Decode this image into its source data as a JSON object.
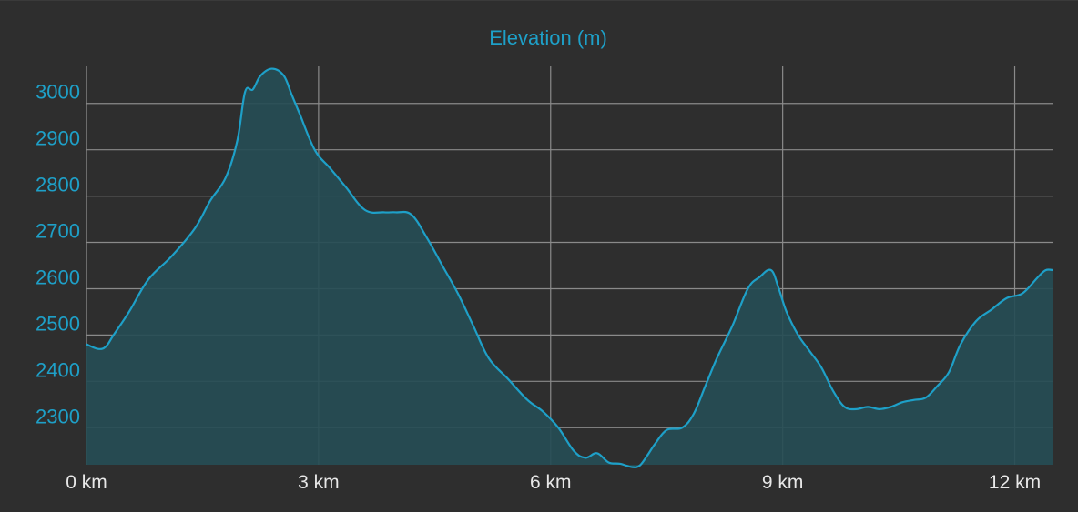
{
  "chart_data": {
    "type": "area",
    "title": "Elevation (m)",
    "xlabel": "",
    "ylabel": "",
    "x_unit": "km",
    "xlim": [
      0,
      12.5
    ],
    "ylim": [
      2220,
      3080
    ],
    "x_ticks": [
      {
        "value": 0,
        "label": "0 km"
      },
      {
        "value": 3,
        "label": "3 km"
      },
      {
        "value": 6,
        "label": "6 km"
      },
      {
        "value": 9,
        "label": "9 km"
      },
      {
        "value": 12,
        "label": "12 km"
      }
    ],
    "y_ticks": [
      {
        "value": 2300,
        "label": "2300"
      },
      {
        "value": 2400,
        "label": "2400"
      },
      {
        "value": 2500,
        "label": "2500"
      },
      {
        "value": 2600,
        "label": "2600"
      },
      {
        "value": 2700,
        "label": "2700"
      },
      {
        "value": 2800,
        "label": "2800"
      },
      {
        "value": 2900,
        "label": "2900"
      },
      {
        "value": 3000,
        "label": "3000"
      }
    ],
    "grid": true,
    "colors": {
      "background": "#2e2e2e",
      "line": "#1ea0c8",
      "fill": "#264d55",
      "grid": "#8a8a8a",
      "title": "#1ea0c8",
      "y_tick_text": "#1ea0c8",
      "x_tick_text": "#e8e8e8"
    },
    "series": [
      {
        "x": [
          0,
          0.15,
          0.25,
          0.35,
          0.55,
          0.8,
          1.1,
          1.4,
          1.6,
          1.8,
          1.95,
          2.05,
          2.15,
          2.25,
          2.4,
          2.55,
          2.65,
          2.75,
          2.95,
          3.15,
          3.35,
          3.6,
          3.85,
          4.0,
          4.2,
          4.4,
          4.6,
          4.8,
          5.0,
          5.2,
          5.45,
          5.7,
          5.9,
          6.1,
          6.3,
          6.45,
          6.6,
          6.75,
          6.9,
          7.05,
          7.15,
          7.25,
          7.35,
          7.5,
          7.7,
          7.85,
          8.0,
          8.15,
          8.35,
          8.55,
          8.7,
          8.85,
          8.95,
          9.05,
          9.2,
          9.35,
          9.5,
          9.65,
          9.8,
          9.95,
          10.1,
          10.25,
          10.4,
          10.55,
          10.7,
          10.85,
          11.0,
          11.15,
          11.3,
          11.5,
          11.7,
          11.9,
          12.1,
          12.3,
          12.4,
          12.5
        ],
        "y": [
          2480,
          2470,
          2475,
          2500,
          2550,
          2620,
          2670,
          2730,
          2790,
          2840,
          2920,
          3025,
          3030,
          3060,
          3075,
          3060,
          3020,
          2980,
          2900,
          2860,
          2820,
          2770,
          2765,
          2765,
          2760,
          2710,
          2650,
          2590,
          2520,
          2450,
          2405,
          2360,
          2335,
          2300,
          2250,
          2235,
          2245,
          2225,
          2222,
          2215,
          2218,
          2240,
          2265,
          2295,
          2300,
          2330,
          2390,
          2450,
          2520,
          2600,
          2625,
          2640,
          2600,
          2550,
          2500,
          2465,
          2430,
          2380,
          2345,
          2340,
          2345,
          2340,
          2345,
          2355,
          2360,
          2365,
          2390,
          2420,
          2480,
          2530,
          2555,
          2580,
          2590,
          2625,
          2640,
          2640
        ]
      }
    ]
  }
}
